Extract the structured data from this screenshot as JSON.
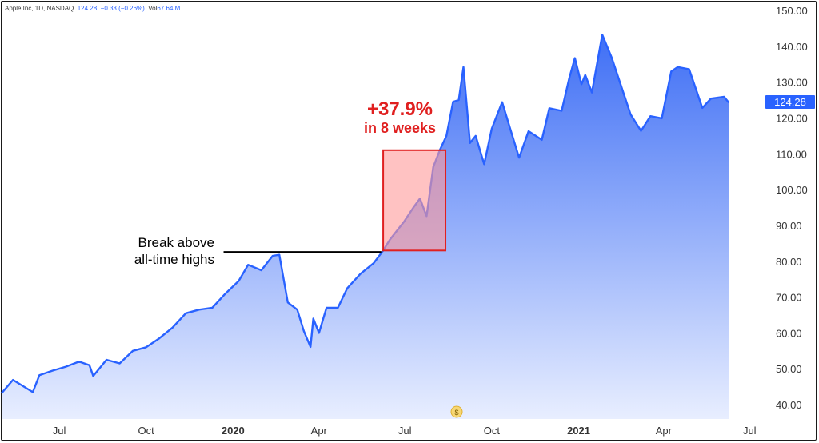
{
  "header": {
    "symbol_label": "Apple Inc, 1D, NASDAQ",
    "price": "124.28",
    "change": "−0.33 (−0.26%)",
    "vol_label": "Vol",
    "volume": "67.64 M"
  },
  "last_price_label": "124.28",
  "colors": {
    "line": "#2962ff",
    "fill_top": "#3f6ff5",
    "fill_bottom": "#e8eeff",
    "highlight_fill": "#ff9999",
    "highlight_stroke": "#e02020",
    "annotation_red": "#e02020"
  },
  "icons": {
    "currency_badge": "dollar-badge-icon"
  },
  "currency_symbol": "$",
  "annotations": {
    "breakout_line1": "Break above",
    "breakout_line2": "all-time highs",
    "gain_pct": "+37.9%",
    "gain_period": "in 8 weeks"
  },
  "chart_data": {
    "type": "area",
    "title": "",
    "xlabel": "",
    "ylabel": "",
    "ylim": [
      36,
      152
    ],
    "y_ticks": [
      "150.00",
      "140.00",
      "130.00",
      "120.00",
      "110.00",
      "100.00",
      "90.00",
      "80.00",
      "70.00",
      "60.00",
      "50.00",
      "40.00"
    ],
    "x_ticks": [
      {
        "label": "Jul",
        "bold": false
      },
      {
        "label": "Oct",
        "bold": false
      },
      {
        "label": "2020",
        "bold": true
      },
      {
        "label": "Apr",
        "bold": false
      },
      {
        "label": "Jul",
        "bold": false
      },
      {
        "label": "Oct",
        "bold": false
      },
      {
        "label": "2021",
        "bold": true
      },
      {
        "label": "Apr",
        "bold": false
      },
      {
        "label": "Jul",
        "bold": false
      }
    ],
    "x_tick_dates": [
      "2019-07-01",
      "2019-10-01",
      "2020-01-01",
      "2020-04-01",
      "2020-07-01",
      "2020-10-01",
      "2021-01-01",
      "2021-04-01",
      "2021-07-01"
    ],
    "x_range": [
      "2019-05-01",
      "2021-07-05"
    ],
    "series": [
      {
        "points": [
          [
            "2019-05-01",
            43.2
          ],
          [
            "2019-05-13",
            46.9
          ],
          [
            "2019-06-03",
            43.5
          ],
          [
            "2019-06-10",
            48.2
          ],
          [
            "2019-06-24",
            49.5
          ],
          [
            "2019-07-08",
            50.6
          ],
          [
            "2019-07-22",
            52.0
          ],
          [
            "2019-08-02",
            51.0
          ],
          [
            "2019-08-06",
            48.0
          ],
          [
            "2019-08-20",
            52.5
          ],
          [
            "2019-09-03",
            51.5
          ],
          [
            "2019-09-17",
            55.0
          ],
          [
            "2019-10-01",
            56.0
          ],
          [
            "2019-10-15",
            58.5
          ],
          [
            "2019-10-29",
            61.5
          ],
          [
            "2019-11-12",
            65.5
          ],
          [
            "2019-11-26",
            66.5
          ],
          [
            "2019-12-10",
            67.0
          ],
          [
            "2019-12-24",
            71.0
          ],
          [
            "2020-01-07",
            74.5
          ],
          [
            "2020-01-17",
            79.0
          ],
          [
            "2020-01-31",
            77.5
          ],
          [
            "2020-02-12",
            81.5
          ],
          [
            "2020-02-19",
            81.8
          ],
          [
            "2020-02-28",
            68.5
          ],
          [
            "2020-03-09",
            66.5
          ],
          [
            "2020-03-16",
            60.5
          ],
          [
            "2020-03-23",
            56.1
          ],
          [
            "2020-03-26",
            64.0
          ],
          [
            "2020-04-01",
            60.0
          ],
          [
            "2020-04-09",
            67.0
          ],
          [
            "2020-04-21",
            67.0
          ],
          [
            "2020-05-01",
            72.5
          ],
          [
            "2020-05-15",
            76.5
          ],
          [
            "2020-05-29",
            79.5
          ],
          [
            "2020-06-08",
            83.0
          ],
          [
            "2020-06-15",
            86.0
          ],
          [
            "2020-06-30",
            91.0
          ],
          [
            "2020-07-10",
            95.0
          ],
          [
            "2020-07-17",
            97.5
          ],
          [
            "2020-07-24",
            92.6
          ],
          [
            "2020-07-31",
            106.3
          ],
          [
            "2020-08-07",
            111.0
          ],
          [
            "2020-08-14",
            115.0
          ],
          [
            "2020-08-21",
            124.5
          ],
          [
            "2020-08-27",
            125.0
          ],
          [
            "2020-09-01",
            134.2
          ],
          [
            "2020-09-08",
            113.0
          ],
          [
            "2020-09-14",
            115.0
          ],
          [
            "2020-09-23",
            107.1
          ],
          [
            "2020-10-01",
            117.0
          ],
          [
            "2020-10-12",
            124.4
          ],
          [
            "2020-10-20",
            117.5
          ],
          [
            "2020-10-30",
            108.9
          ],
          [
            "2020-11-09",
            116.3
          ],
          [
            "2020-11-23",
            113.9
          ],
          [
            "2020-12-01",
            122.7
          ],
          [
            "2020-12-14",
            122.0
          ],
          [
            "2020-12-22",
            131.0
          ],
          [
            "2020-12-28",
            136.7
          ],
          [
            "2021-01-04",
            129.4
          ],
          [
            "2021-01-08",
            132.0
          ],
          [
            "2021-01-15",
            127.1
          ],
          [
            "2021-01-26",
            143.2
          ],
          [
            "2021-02-05",
            136.8
          ],
          [
            "2021-02-25",
            121.0
          ],
          [
            "2021-03-08",
            116.4
          ],
          [
            "2021-03-18",
            120.5
          ],
          [
            "2021-03-30",
            119.9
          ],
          [
            "2021-04-09",
            133.0
          ],
          [
            "2021-04-16",
            134.2
          ],
          [
            "2021-04-28",
            133.6
          ],
          [
            "2021-05-12",
            122.8
          ],
          [
            "2021-05-21",
            125.4
          ],
          [
            "2021-06-04",
            125.9
          ],
          [
            "2021-06-09",
            124.28
          ]
        ]
      }
    ],
    "highlight_box": {
      "x_start": "2020-06-08",
      "x_end": "2020-08-13",
      "y_low": 83,
      "y_high": 111
    },
    "reference_line": {
      "x_start": "2019-12-22",
      "x_end": "2020-06-06",
      "y": 82.6
    }
  }
}
